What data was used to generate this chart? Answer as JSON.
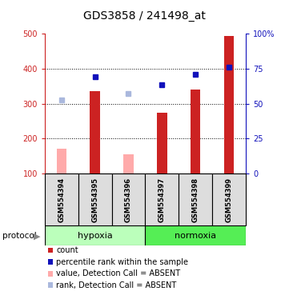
{
  "title": "GDS3858 / 241498_at",
  "samples": [
    "GSM554394",
    "GSM554395",
    "GSM554396",
    "GSM554397",
    "GSM554398",
    "GSM554399"
  ],
  "bar_values": [
    null,
    335,
    null,
    275,
    340,
    493
  ],
  "bar_absent_values": [
    170,
    null,
    155,
    null,
    null,
    null
  ],
  "rank_values": [
    null,
    378,
    null,
    355,
    383,
    405
  ],
  "rank_absent_values": [
    310,
    null,
    328,
    null,
    null,
    null
  ],
  "ylim_left": [
    100,
    500
  ],
  "y_ticks_left": [
    100,
    200,
    300,
    400,
    500
  ],
  "y_ticks_right": [
    0,
    25,
    50,
    75,
    100
  ],
  "y_tick_labels_right": [
    "0",
    "25",
    "50",
    "75",
    "100%"
  ],
  "gridlines": [
    200,
    300,
    400
  ],
  "bar_color": "#cc2222",
  "bar_absent_color": "#ffaaaa",
  "rank_color": "#1111bb",
  "rank_absent_color": "#aab8dd",
  "axis_color_left": "#cc2222",
  "axis_color_right": "#1111bb",
  "hypoxia_color": "#bbffbb",
  "normoxia_color": "#55ee55",
  "sample_box_color": "#dddddd",
  "legend_items": [
    {
      "label": "count",
      "color": "#cc2222"
    },
    {
      "label": "percentile rank within the sample",
      "color": "#1111bb"
    },
    {
      "label": "value, Detection Call = ABSENT",
      "color": "#ffaaaa"
    },
    {
      "label": "rank, Detection Call = ABSENT",
      "color": "#aab8dd"
    }
  ],
  "title_fontsize": 10,
  "tick_fontsize": 7,
  "sample_fontsize": 6,
  "proto_fontsize": 8,
  "legend_fontsize": 7
}
